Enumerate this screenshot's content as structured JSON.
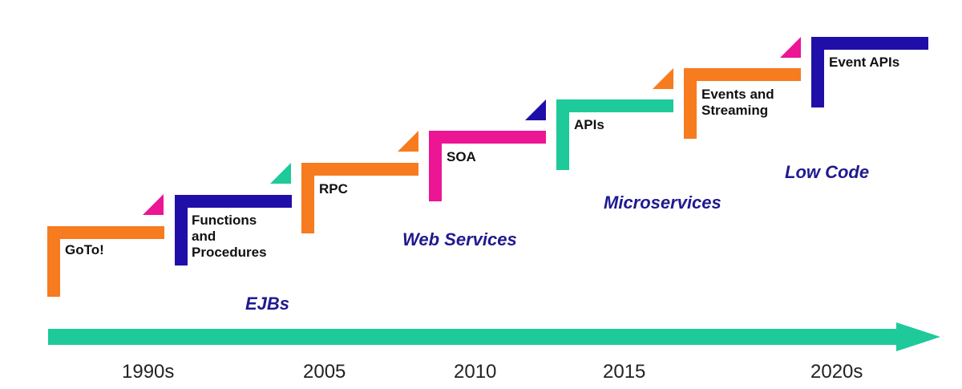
{
  "colors": {
    "orange": "#f77b1f",
    "navy": "#1f0fa8",
    "teal": "#1ec99a",
    "magenta": "#ec1594",
    "era_text": "#1f1a8f"
  },
  "steps": [
    {
      "label": "GoTo!",
      "color": "orange",
      "accent": "magenta"
    },
    {
      "label": "Functions\nand\nProcedures",
      "color": "navy",
      "accent": "teal"
    },
    {
      "label": "RPC",
      "color": "orange",
      "accent": "orange"
    },
    {
      "label": "SOA",
      "color": "magenta",
      "accent": "navy"
    },
    {
      "label": "APIs",
      "color": "teal",
      "accent": "orange"
    },
    {
      "label": "Events and\nStreaming",
      "color": "orange",
      "accent": "magenta"
    },
    {
      "label": "Event APIs",
      "color": "navy",
      "accent": null
    }
  ],
  "eras": [
    "EJBs",
    "Web Services",
    "Microservices",
    "Low Code"
  ],
  "timeline": {
    "color": "teal",
    "years": [
      "1990s",
      "2005",
      "2010",
      "2015",
      "2020s"
    ]
  }
}
